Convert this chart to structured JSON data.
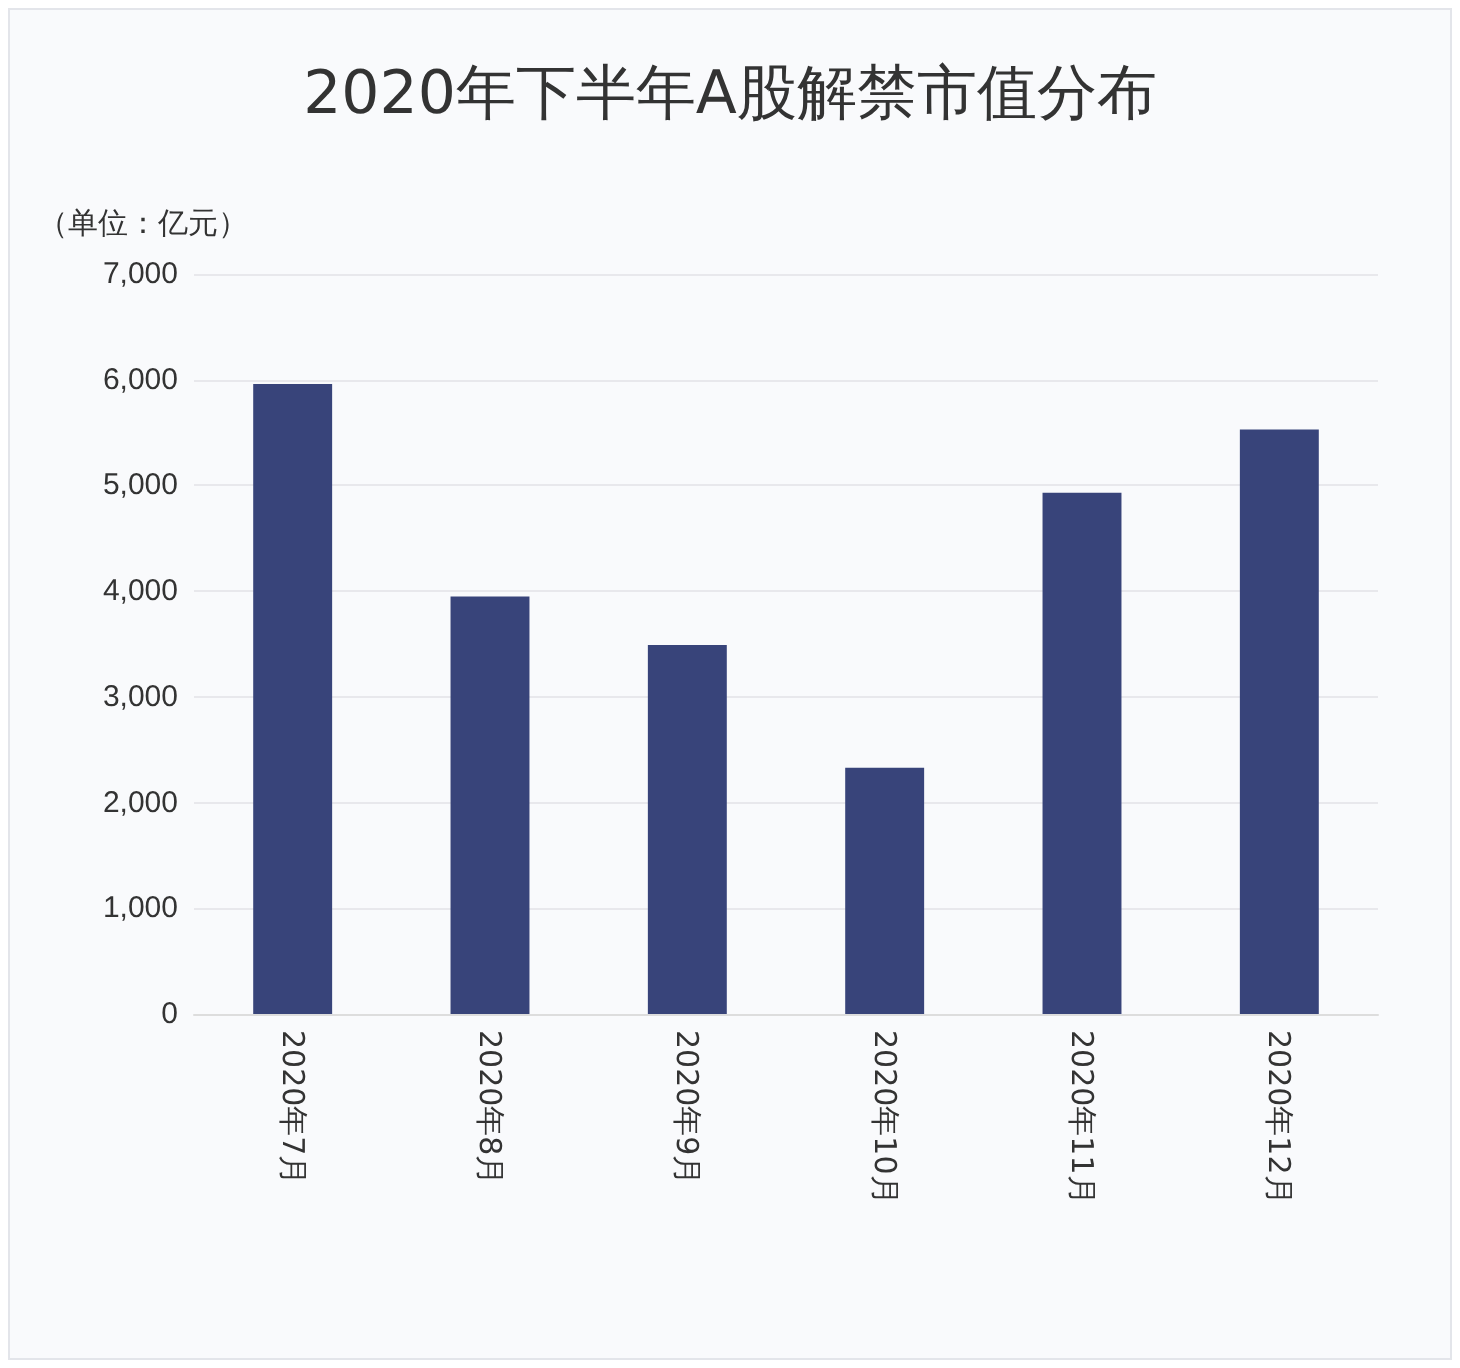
{
  "chart_data": {
    "type": "bar",
    "title": "2020年下半年A股解禁市值分布",
    "ylabel": "（单位：亿元）",
    "categories": [
      "2020年7月",
      "2020年8月",
      "2020年9月",
      "2020年10月",
      "2020年11月",
      "2020年12月"
    ],
    "values": [
      5960,
      3950,
      3490,
      2330,
      4930,
      5530
    ],
    "color": "#38447a",
    "ylim": [
      0,
      7000
    ],
    "yticks": [
      0,
      {
        "value": 1000,
        "label": "1,000"
      },
      {
        "value": 2000,
        "label": "2,000"
      },
      {
        "value": 3000,
        "label": "3,000"
      },
      {
        "value": 4000,
        "label": "4,000"
      },
      {
        "value": 5000,
        "label": "5,000"
      },
      {
        "value": 6000,
        "label": "6,000"
      },
      {
        "value": 7000,
        "label": "7,000"
      }
    ],
    "grid": "y"
  }
}
